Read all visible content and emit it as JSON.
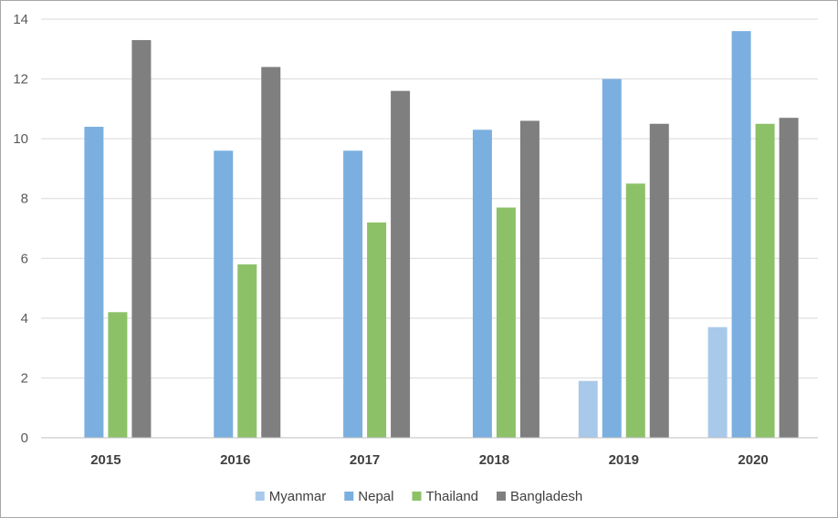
{
  "chart_data": {
    "type": "bar",
    "title": "",
    "xlabel": "",
    "ylabel": "",
    "categories": [
      "2015",
      "2016",
      "2017",
      "2018",
      "2019",
      "2020"
    ],
    "ylim": [
      0,
      14
    ],
    "yticks": [
      0,
      2,
      4,
      6,
      8,
      10,
      12,
      14
    ],
    "grid": true,
    "legend_position": "bottom",
    "series": [
      {
        "name": "Myanmar",
        "color": "#a9c9ea",
        "values": [
          0,
          0,
          0,
          0,
          1.9,
          3.7
        ]
      },
      {
        "name": "Nepal",
        "color": "#7aafe0",
        "values": [
          10.4,
          9.6,
          9.6,
          10.3,
          12.0,
          13.6
        ]
      },
      {
        "name": "Thailand",
        "color": "#8cc168",
        "values": [
          4.2,
          5.8,
          7.2,
          7.7,
          8.5,
          10.5
        ]
      },
      {
        "name": "Bangladesh",
        "color": "#7f7f7f",
        "values": [
          13.3,
          12.4,
          11.6,
          10.6,
          10.5,
          10.7
        ]
      }
    ]
  }
}
